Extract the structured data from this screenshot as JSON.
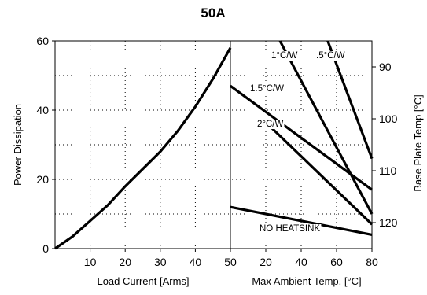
{
  "chart_data": {
    "type": "line",
    "title": "50A",
    "left_axis": {
      "label": "Power Dissipation",
      "ylim": [
        0,
        60
      ],
      "ticks": [
        0,
        20,
        40,
        60
      ]
    },
    "right_axis": {
      "label": "Base Plate Temp [°C]",
      "range": [
        85,
        125
      ],
      "ticks": [
        90,
        100,
        110,
        120
      ],
      "inverted": true
    },
    "x_left": {
      "label": "Load Current  [Arms]",
      "xlim": [
        0,
        50
      ],
      "ticks": [
        10,
        20,
        30,
        40,
        50
      ]
    },
    "x_right": {
      "label": "Max Ambient Temp. [°C]",
      "xlim": [
        0,
        80
      ],
      "ticks": [
        20,
        40,
        60,
        80
      ]
    },
    "grid": true,
    "series": [
      {
        "points": [
          [
            0,
            0
          ],
          [
            5,
            3.5
          ],
          [
            10,
            8
          ],
          [
            15,
            12.5
          ],
          [
            20,
            18
          ],
          [
            25,
            23
          ],
          [
            30,
            28
          ],
          [
            35,
            34
          ],
          [
            40,
            41
          ],
          [
            45,
            49
          ],
          [
            50,
            58
          ]
        ]
      }
    ],
    "thermal_lines": [
      {
        "name": "1°C/W",
        "p1": [
          28,
          60
        ],
        "p2": [
          80,
          10
        ]
      },
      {
        "name": ".5°C/W",
        "p1": [
          55,
          60
        ],
        "p2": [
          80,
          26
        ]
      },
      {
        "name": "1.5°C/W",
        "p1": [
          0,
          47
        ],
        "p2": [
          80,
          17
        ]
      },
      {
        "name": "2°C/W",
        "p1": [
          21,
          36
        ],
        "p2": [
          80,
          7
        ]
      },
      {
        "name": "NO HEATSINK",
        "p1": [
          0,
          12
        ],
        "p2": [
          80,
          4
        ]
      }
    ]
  }
}
